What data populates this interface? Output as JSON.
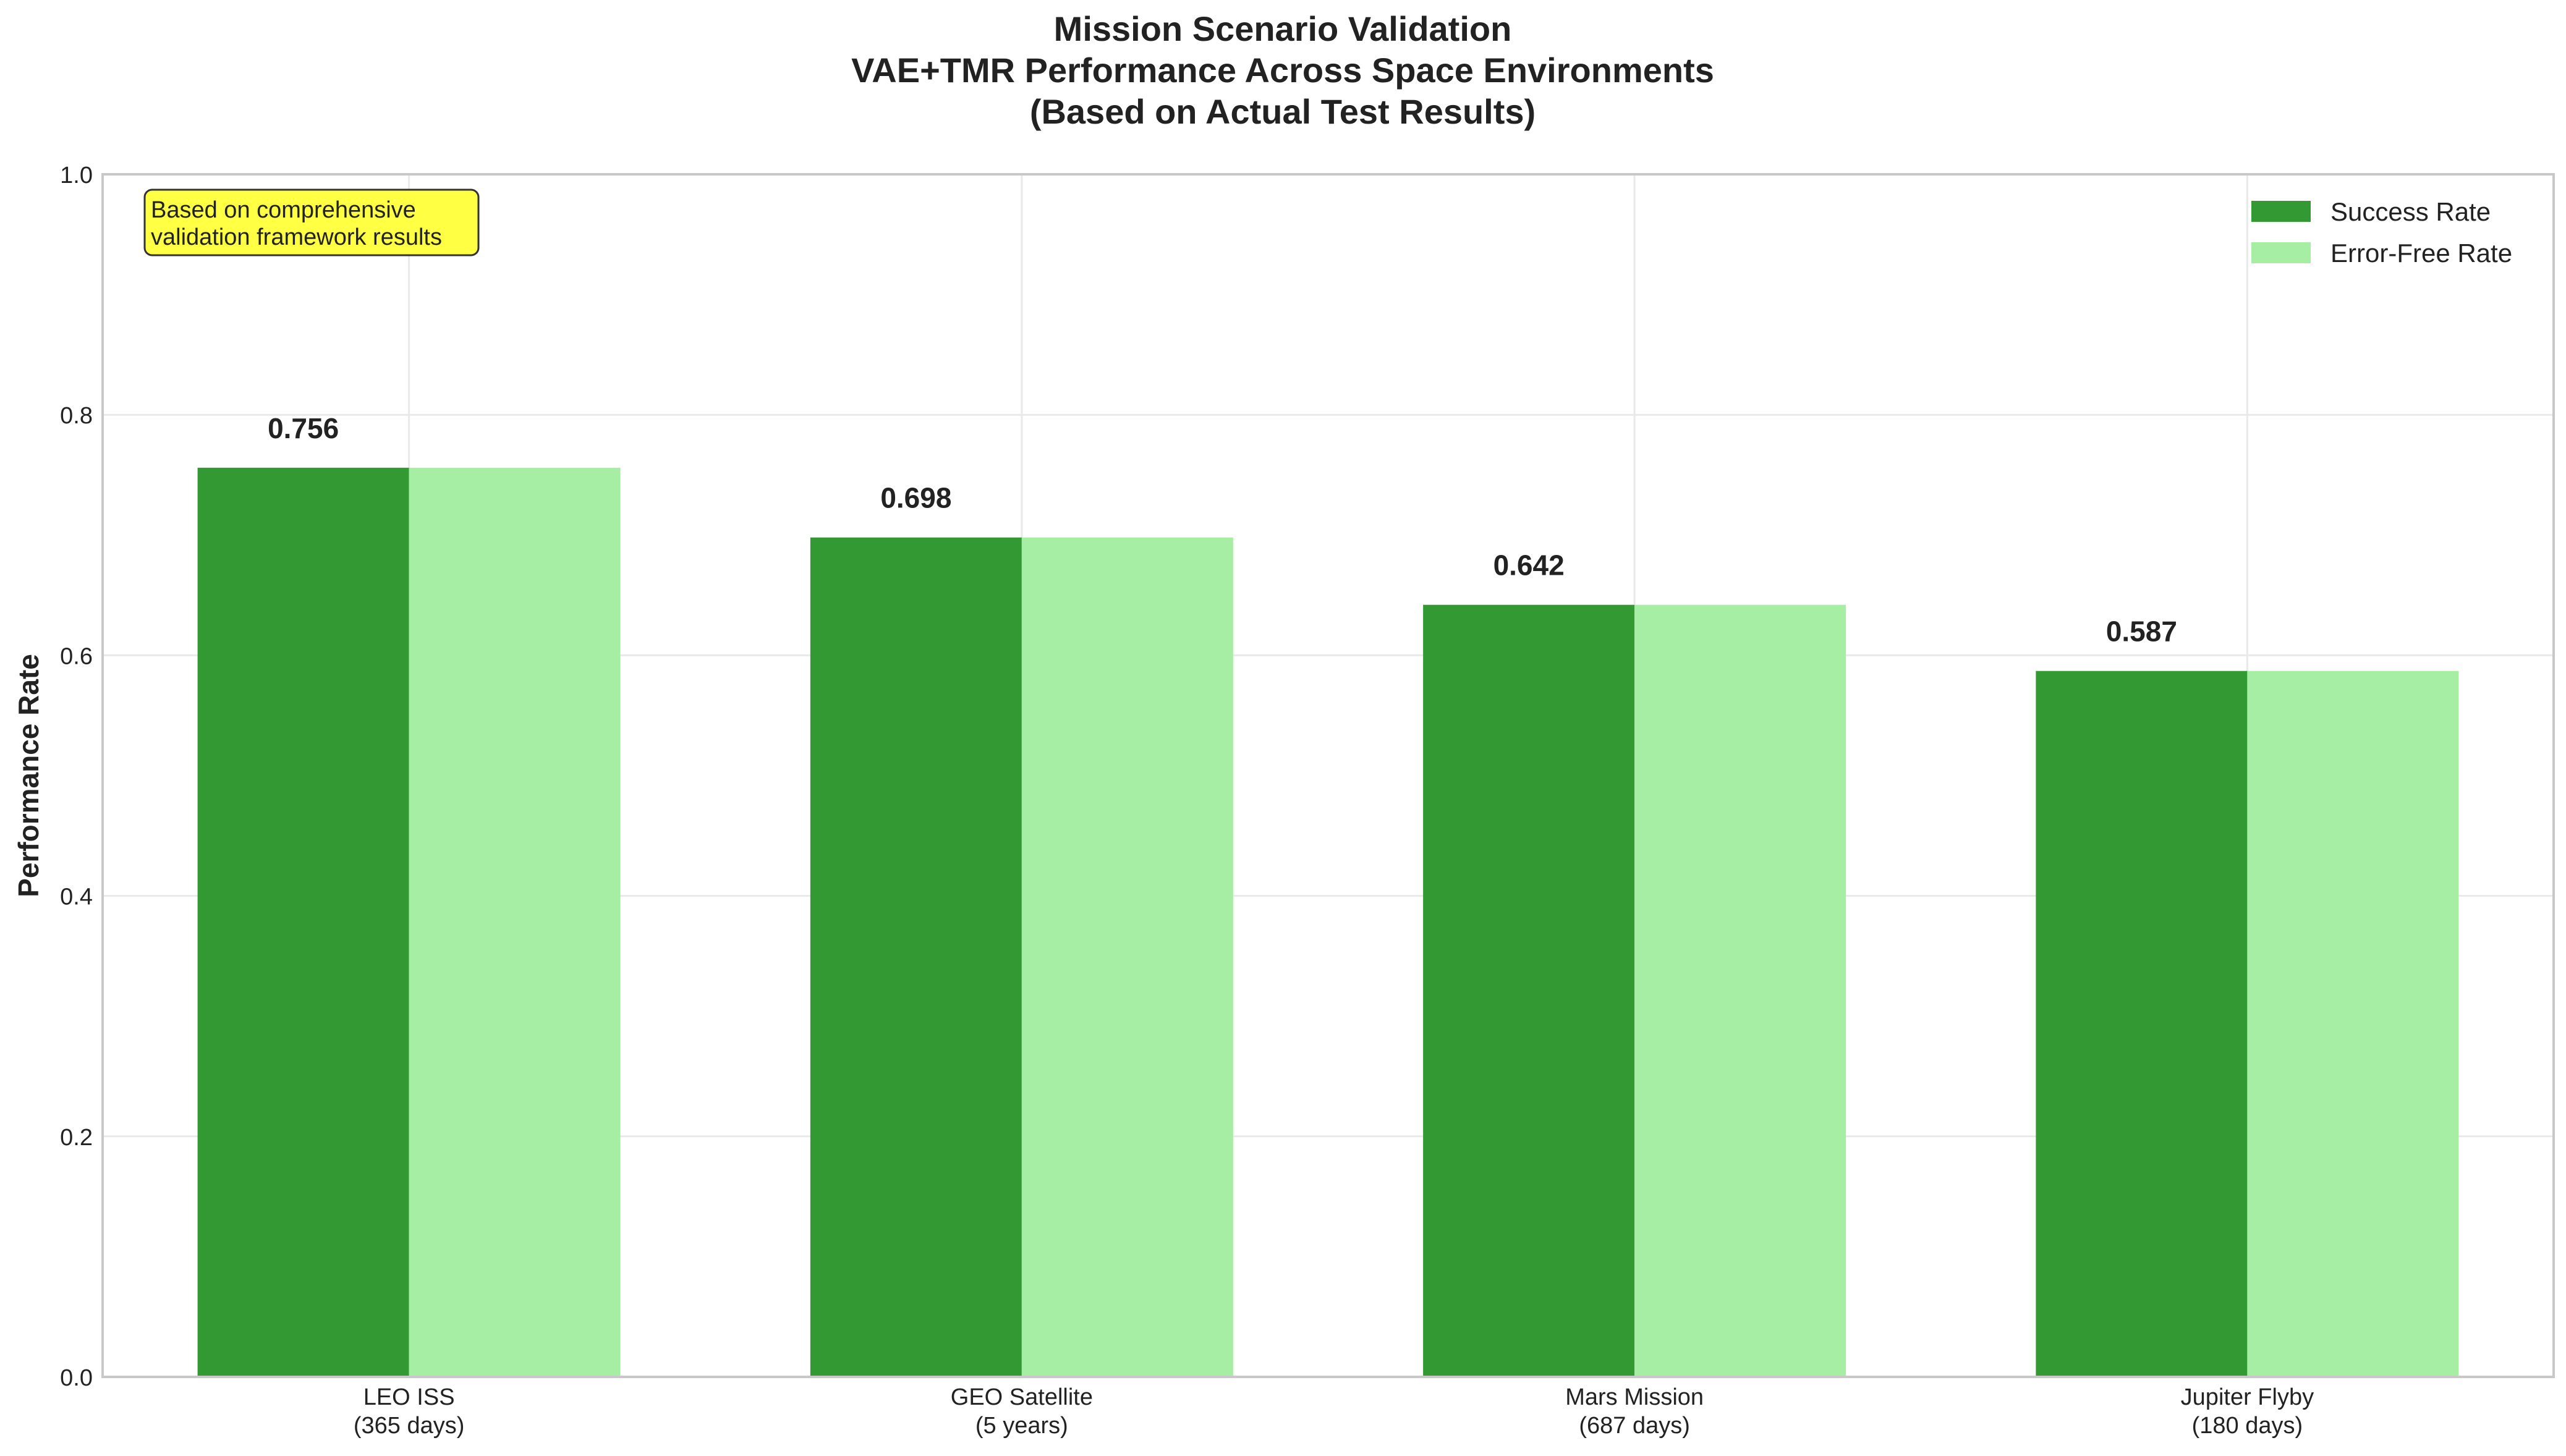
{
  "chart_data": {
    "type": "bar",
    "title": [
      "Mission Scenario Validation",
      "VAE+TMR Performance Across Space Environments",
      "(Based on Actual Test Results)"
    ],
    "xlabel": "",
    "ylabel": "Performance Rate",
    "ylim": [
      0,
      1.0
    ],
    "yticks": [
      0.0,
      0.2,
      0.4,
      0.6,
      0.8,
      1.0
    ],
    "ytick_labels": [
      "0.0",
      "0.2",
      "0.4",
      "0.6",
      "0.8",
      "1.0"
    ],
    "categories": [
      [
        "LEO ISS",
        "(365 days)"
      ],
      [
        "GEO Satellite",
        "(5 years)"
      ],
      [
        "Mars Mission",
        "(687 days)"
      ],
      [
        "Jupiter Flyby",
        "(180 days)"
      ]
    ],
    "series": [
      {
        "name": "Success Rate",
        "values": [
          0.756,
          0.698,
          0.642,
          0.587
        ],
        "color": "#339933"
      },
      {
        "name": "Error-Free Rate",
        "values": [
          0.756,
          0.698,
          0.642,
          0.587
        ],
        "color": "#a6eea3"
      }
    ],
    "value_labels": [
      "0.756",
      "0.698",
      "0.642",
      "0.587"
    ],
    "annotation": [
      "Based on comprehensive",
      "validation framework results"
    ],
    "annotation_color": "#ffff44",
    "grid": true,
    "legend_position": "top-right"
  }
}
